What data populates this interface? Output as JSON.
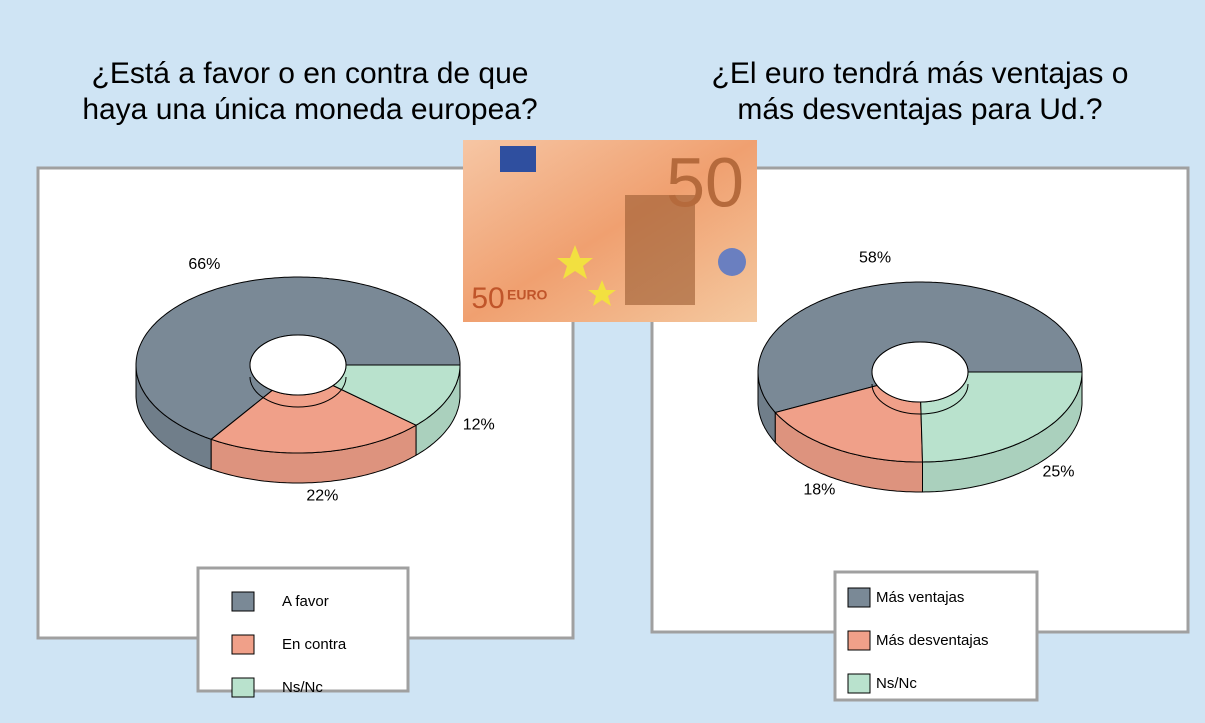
{
  "chart_data": [
    {
      "type": "pie",
      "title": [
        "¿Está a favor o en contra de que",
        "haya una única moneda europea?"
      ],
      "categories": [
        "A favor",
        "En contra",
        "Ns/Nc"
      ],
      "values": [
        66,
        22,
        12
      ],
      "value_labels": [
        "66%",
        "22%",
        "12%"
      ],
      "colors": [
        "#7a8996",
        "#f0a089",
        "#b9e2cd"
      ],
      "donut": true
    },
    {
      "type": "pie",
      "title": [
        "¿El euro tendrá más ventajas o",
        "más desventajas para Ud.?"
      ],
      "categories": [
        "Más ventajas",
        "Más desventajas",
        "Ns/Nc"
      ],
      "values": [
        58,
        18,
        25
      ],
      "value_labels": [
        "58%",
        "18%",
        "25%"
      ],
      "colors": [
        "#7a8996",
        "#f0a089",
        "#b9e2cd"
      ],
      "donut": true
    }
  ],
  "banknote": {
    "denomination": "50",
    "currency": "EURO"
  }
}
